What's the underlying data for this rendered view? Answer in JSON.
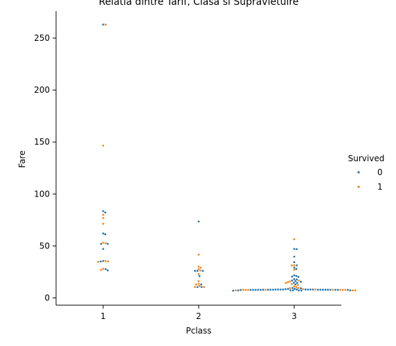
{
  "chart_data": {
    "type": "scatter",
    "subtype": "swarm",
    "title": "Relatia dintre Tarif, Clasa si Supravietuire",
    "xlabel": "Pclass",
    "ylabel": "Fare",
    "categories": [
      "1",
      "2",
      "3"
    ],
    "ylim": [
      -7,
      276
    ],
    "yticks": [
      0,
      50,
      100,
      150,
      200,
      250
    ],
    "grid": false,
    "legend": {
      "title": "Survived",
      "placement": "right",
      "entries": [
        {
          "label": "0",
          "color": "#1f77b4"
        },
        {
          "label": "1",
          "color": "#ff7f0e"
        }
      ]
    },
    "series": [
      {
        "name": "0",
        "color": "#1f77b4",
        "points": [
          {
            "x": "1",
            "y": 263.0
          },
          {
            "x": "1",
            "y": 83.5
          },
          {
            "x": "1",
            "y": 82.2
          },
          {
            "x": "1",
            "y": 62.0
          },
          {
            "x": "1",
            "y": 61.2
          },
          {
            "x": "1",
            "y": 52.0
          },
          {
            "x": "1",
            "y": 52.0
          },
          {
            "x": "1",
            "y": 47.1
          },
          {
            "x": "1",
            "y": 35.5
          },
          {
            "x": "1",
            "y": 35.0
          },
          {
            "x": "1",
            "y": 27.7
          },
          {
            "x": "1",
            "y": 26.5
          },
          {
            "x": "2",
            "y": 73.5
          },
          {
            "x": "2",
            "y": 26.0
          },
          {
            "x": "2",
            "y": 26.0
          },
          {
            "x": "2",
            "y": 26.0
          },
          {
            "x": "2",
            "y": 21.0
          },
          {
            "x": "2",
            "y": 13.0
          },
          {
            "x": "2",
            "y": 10.5
          },
          {
            "x": "2",
            "y": 10.5
          },
          {
            "x": "3",
            "y": 47.1
          },
          {
            "x": "3",
            "y": 46.9
          },
          {
            "x": "3",
            "y": 39.7
          },
          {
            "x": "3",
            "y": 34.4
          },
          {
            "x": "3",
            "y": 31.3
          },
          {
            "x": "3",
            "y": 29.1
          },
          {
            "x": "3",
            "y": 27.9
          },
          {
            "x": "3",
            "y": 21.7
          },
          {
            "x": "3",
            "y": 21.1
          },
          {
            "x": "3",
            "y": 20.5
          },
          {
            "x": "3",
            "y": 20.2
          },
          {
            "x": "3",
            "y": 18.0
          },
          {
            "x": "3",
            "y": 17.8
          },
          {
            "x": "3",
            "y": 16.7
          },
          {
            "x": "3",
            "y": 16.1
          },
          {
            "x": "3",
            "y": 15.5
          },
          {
            "x": "3",
            "y": 14.5
          },
          {
            "x": "3",
            "y": 14.5
          },
          {
            "x": "3",
            "y": 13.0
          },
          {
            "x": "3",
            "y": 9.5
          },
          {
            "x": "3",
            "y": 9.2
          },
          {
            "x": "3",
            "y": 8.7
          },
          {
            "x": "3",
            "y": 8.6
          },
          {
            "x": "3",
            "y": 8.4
          },
          {
            "x": "3",
            "y": 8.1
          },
          {
            "x": "3",
            "y": 8.1
          },
          {
            "x": "3",
            "y": 8.1
          },
          {
            "x": "3",
            "y": 8.05
          },
          {
            "x": "3",
            "y": 8.05
          },
          {
            "x": "3",
            "y": 8.05
          },
          {
            "x": "3",
            "y": 8.05
          },
          {
            "x": "3",
            "y": 8.05
          },
          {
            "x": "3",
            "y": 8.05
          },
          {
            "x": "3",
            "y": 7.9
          },
          {
            "x": "3",
            "y": 7.9
          },
          {
            "x": "3",
            "y": 7.9
          },
          {
            "x": "3",
            "y": 7.9
          },
          {
            "x": "3",
            "y": 7.9
          },
          {
            "x": "3",
            "y": 7.9
          },
          {
            "x": "3",
            "y": 7.85
          },
          {
            "x": "3",
            "y": 7.85
          },
          {
            "x": "3",
            "y": 7.85
          },
          {
            "x": "3",
            "y": 7.8
          },
          {
            "x": "3",
            "y": 7.8
          },
          {
            "x": "3",
            "y": 7.8
          },
          {
            "x": "3",
            "y": 7.75
          },
          {
            "x": "3",
            "y": 7.75
          },
          {
            "x": "3",
            "y": 7.75
          },
          {
            "x": "3",
            "y": 7.75
          },
          {
            "x": "3",
            "y": 7.75
          },
          {
            "x": "3",
            "y": 7.7
          },
          {
            "x": "3",
            "y": 7.65
          },
          {
            "x": "3",
            "y": 7.25
          },
          {
            "x": "3",
            "y": 7.25
          },
          {
            "x": "3",
            "y": 7.25
          },
          {
            "x": "3",
            "y": 7.23
          },
          {
            "x": "3",
            "y": 7.23
          },
          {
            "x": "3",
            "y": 7.05
          },
          {
            "x": "3",
            "y": 6.95
          }
        ]
      },
      {
        "name": "1",
        "color": "#ff7f0e",
        "points": [
          {
            "x": "1",
            "y": 263.0
          },
          {
            "x": "1",
            "y": 146.5
          },
          {
            "x": "1",
            "y": 80.0
          },
          {
            "x": "1",
            "y": 77.0
          },
          {
            "x": "1",
            "y": 71.3
          },
          {
            "x": "1",
            "y": 53.1
          },
          {
            "x": "1",
            "y": 52.6
          },
          {
            "x": "1",
            "y": 35.5
          },
          {
            "x": "1",
            "y": 35.0
          },
          {
            "x": "1",
            "y": 34.7
          },
          {
            "x": "1",
            "y": 28.0
          },
          {
            "x": "1",
            "y": 26.9
          },
          {
            "x": "2",
            "y": 41.6
          },
          {
            "x": "2",
            "y": 30.1
          },
          {
            "x": "2",
            "y": 29.0
          },
          {
            "x": "2",
            "y": 27.7
          },
          {
            "x": "2",
            "y": 26.3
          },
          {
            "x": "2",
            "y": 23.0
          },
          {
            "x": "2",
            "y": 16.0
          },
          {
            "x": "2",
            "y": 13.5
          },
          {
            "x": "2",
            "y": 13.0
          },
          {
            "x": "2",
            "y": 11.5
          },
          {
            "x": "2",
            "y": 10.5
          },
          {
            "x": "2",
            "y": 10.5
          },
          {
            "x": "3",
            "y": 56.5
          },
          {
            "x": "3",
            "y": 31.4
          },
          {
            "x": "3",
            "y": 31.3
          },
          {
            "x": "3",
            "y": 27.0
          },
          {
            "x": "3",
            "y": 16.7
          },
          {
            "x": "3",
            "y": 15.9
          },
          {
            "x": "3",
            "y": 15.2
          },
          {
            "x": "3",
            "y": 14.4
          },
          {
            "x": "3",
            "y": 13.4
          },
          {
            "x": "3",
            "y": 12.5
          },
          {
            "x": "3",
            "y": 11.1
          },
          {
            "x": "3",
            "y": 10.5
          },
          {
            "x": "3",
            "y": 9.5
          },
          {
            "x": "3",
            "y": 9.3
          },
          {
            "x": "3",
            "y": 8.5
          },
          {
            "x": "3",
            "y": 8.05
          },
          {
            "x": "3",
            "y": 7.9
          },
          {
            "x": "3",
            "y": 7.8
          },
          {
            "x": "3",
            "y": 7.75
          },
          {
            "x": "3",
            "y": 7.75
          },
          {
            "x": "3",
            "y": 7.75
          },
          {
            "x": "3",
            "y": 7.75
          },
          {
            "x": "3",
            "y": 7.75
          },
          {
            "x": "3",
            "y": 7.73
          },
          {
            "x": "3",
            "y": 7.23
          },
          {
            "x": "3",
            "y": 7.23
          },
          {
            "x": "3",
            "y": 7.22
          }
        ]
      }
    ]
  }
}
